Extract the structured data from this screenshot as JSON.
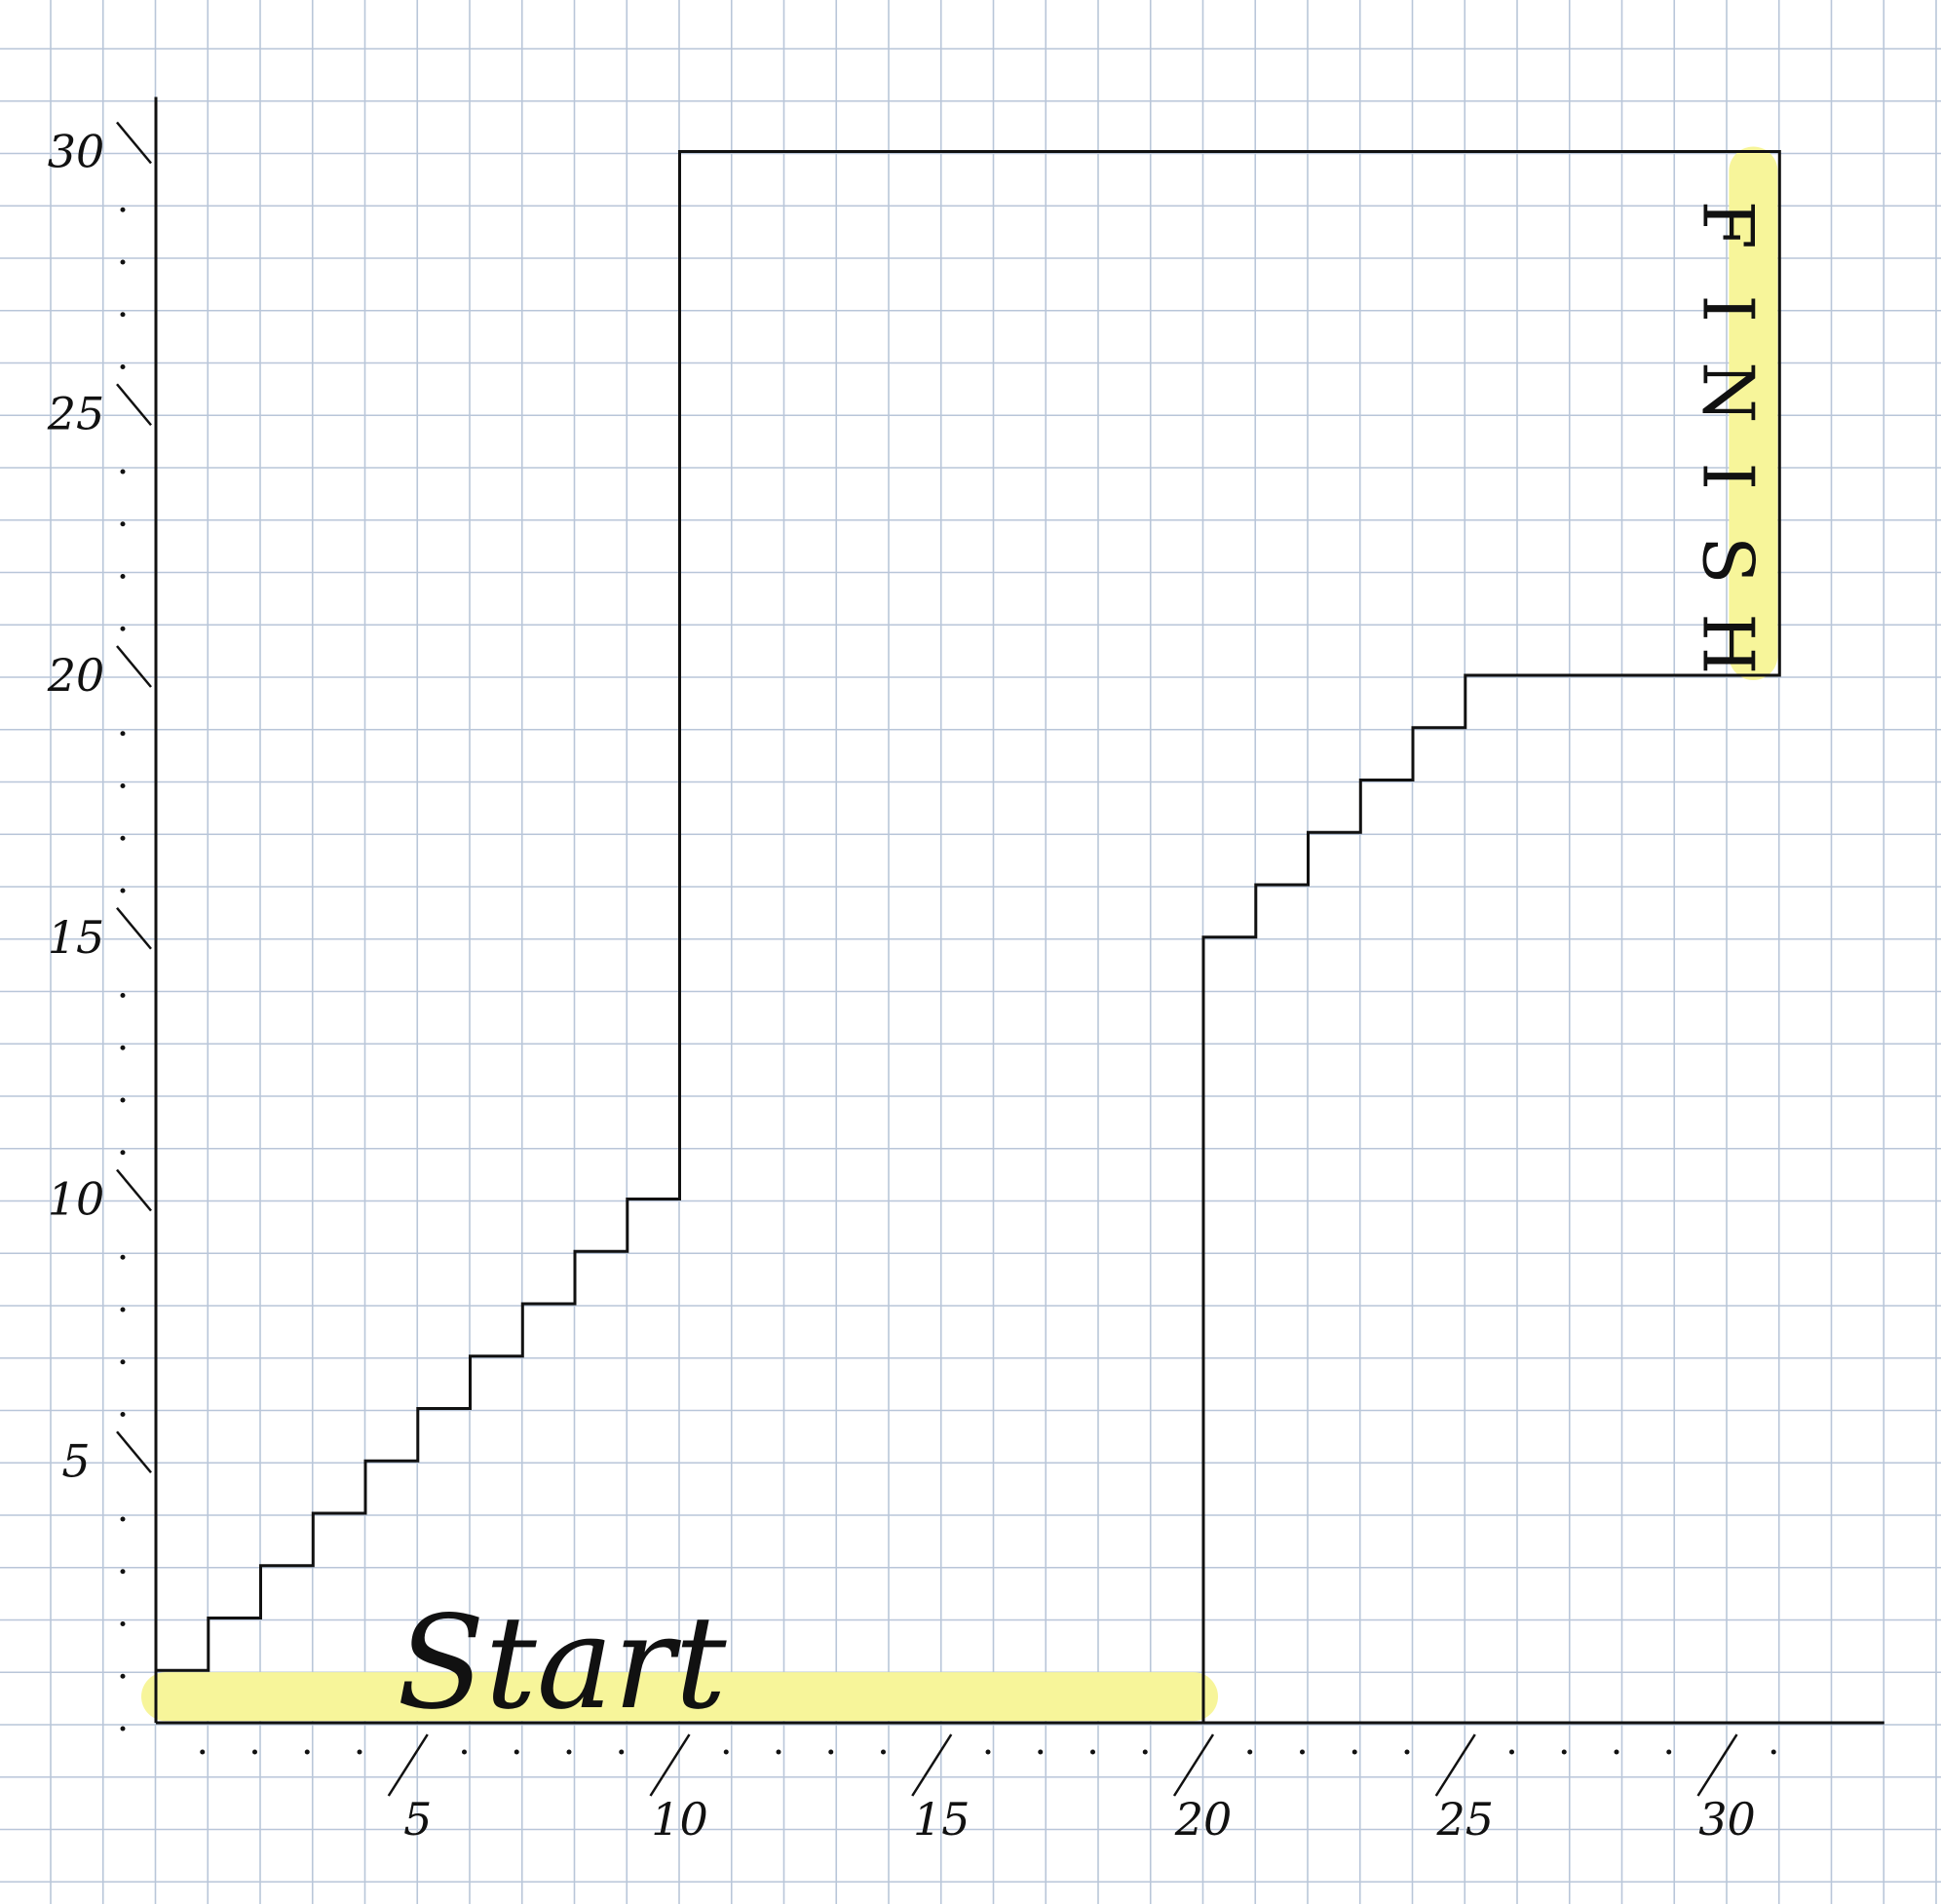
{
  "colors": {
    "paper": "#ffffff",
    "grid": "#b9c6d9",
    "ink": "#111111",
    "highlight": "#f7f59a"
  },
  "chart_data": {
    "type": "line",
    "xlim": [
      0,
      33
    ],
    "ylim": [
      0,
      30
    ],
    "x_ticks": [
      {
        "value": 5,
        "label": "5"
      },
      {
        "value": 10,
        "label": "10"
      },
      {
        "value": 15,
        "label": "15"
      },
      {
        "value": 20,
        "label": "20"
      },
      {
        "value": 25,
        "label": "25"
      },
      {
        "value": 30,
        "label": "30"
      }
    ],
    "y_ticks": [
      {
        "value": 5,
        "label": "5"
      },
      {
        "value": 10,
        "label": "10"
      },
      {
        "value": 15,
        "label": "15"
      },
      {
        "value": 20,
        "label": "20"
      },
      {
        "value": 25,
        "label": "25"
      },
      {
        "value": 30,
        "label": "30"
      }
    ],
    "grid": true,
    "path": [
      [
        0,
        1
      ],
      [
        1,
        1
      ],
      [
        1,
        2
      ],
      [
        2,
        2
      ],
      [
        2,
        3
      ],
      [
        3,
        3
      ],
      [
        3,
        4
      ],
      [
        4,
        4
      ],
      [
        4,
        5
      ],
      [
        5,
        5
      ],
      [
        5,
        6
      ],
      [
        6,
        6
      ],
      [
        6,
        7
      ],
      [
        7,
        7
      ],
      [
        7,
        8
      ],
      [
        8,
        8
      ],
      [
        8,
        9
      ],
      [
        9,
        9
      ],
      [
        9,
        10
      ],
      [
        10,
        10
      ],
      [
        10,
        30
      ],
      [
        31,
        30
      ],
      [
        31,
        20
      ],
      [
        25,
        20
      ],
      [
        25,
        19
      ],
      [
        24,
        19
      ],
      [
        24,
        18
      ],
      [
        23,
        18
      ],
      [
        23,
        17
      ],
      [
        22,
        17
      ],
      [
        22,
        16
      ],
      [
        21,
        16
      ],
      [
        21,
        15
      ],
      [
        20,
        15
      ],
      [
        20,
        0
      ]
    ],
    "start": {
      "label": "Start",
      "highlight_from": [
        0,
        0
      ],
      "highlight_to": [
        20,
        0
      ]
    },
    "finish": {
      "letters": [
        "F",
        "I",
        "N",
        "I",
        "S",
        "H"
      ],
      "highlight_from": [
        30.5,
        20
      ],
      "highlight_to": [
        30.5,
        30
      ]
    }
  }
}
